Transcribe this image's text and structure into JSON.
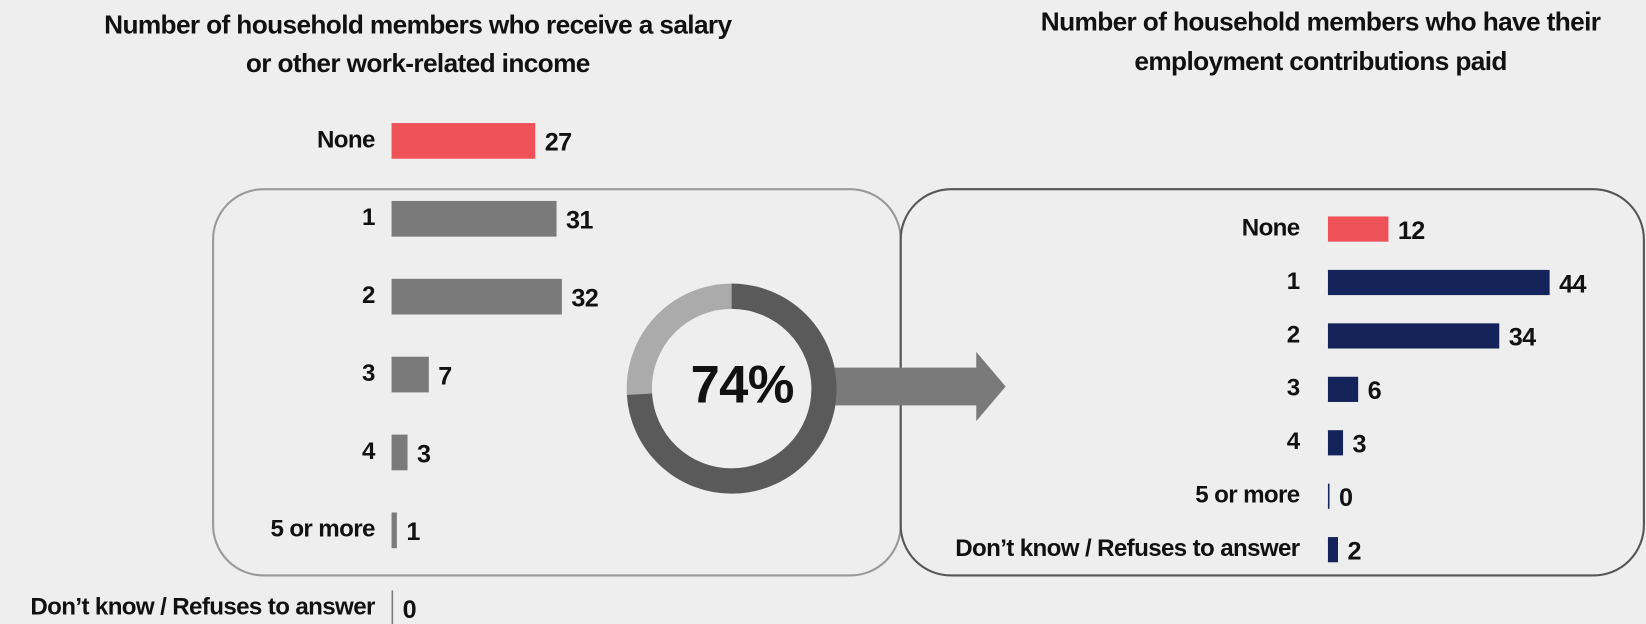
{
  "chart_data": [
    {
      "type": "bar",
      "title": [
        "Number of household members who receive a salary",
        "or other work-related income"
      ],
      "categories": [
        "None",
        "1",
        "2",
        "3",
        "4",
        "5 or more",
        "Don’t know / Refuses to answer"
      ],
      "values": [
        27,
        31,
        32,
        7,
        3,
        1,
        0
      ],
      "colors": [
        "#ef5159",
        "#7a7a7a",
        "#7a7a7a",
        "#7a7a7a",
        "#7a7a7a",
        "#7a7a7a",
        "#7a7a7a"
      ]
    },
    {
      "type": "bar",
      "title": [
        "Number of household members who have their",
        "employment contributions paid"
      ],
      "categories": [
        "None",
        "1",
        "2",
        "3",
        "4",
        "5 or more",
        "Don’t know / Refuses to answer"
      ],
      "values": [
        12,
        44,
        34,
        6,
        3,
        0,
        2
      ],
      "colors": [
        "#ef5159",
        "#14245a",
        "#14245a",
        "#14245a",
        "#14245a",
        "#14245a",
        "#14245a"
      ]
    },
    {
      "type": "donut",
      "values": [
        74
      ],
      "value_labels": [
        "74%"
      ],
      "colors": [
        "#5a5a5a",
        "#ababab"
      ]
    }
  ]
}
